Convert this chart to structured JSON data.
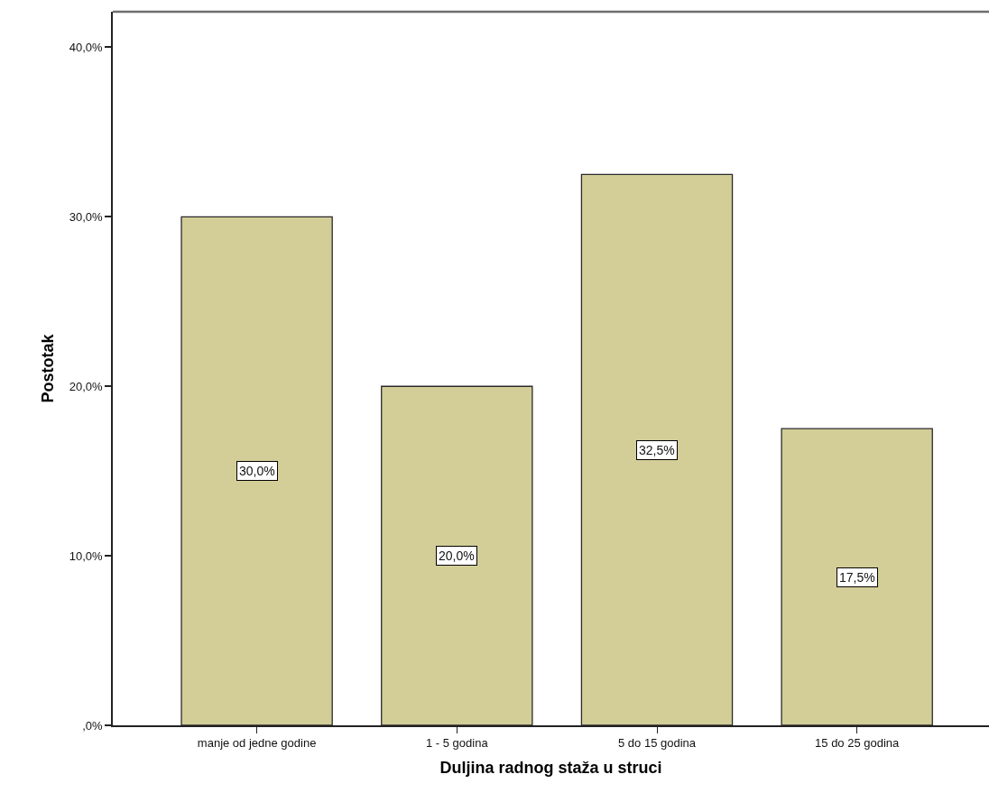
{
  "chart_data": {
    "type": "bar",
    "xlabel": "Duljina radnog staža u struci",
    "ylabel": "Postotak",
    "categories": [
      "manje od jedne godine",
      "1 - 5 godina",
      "5 do 15 godina",
      "15 do 25 godina"
    ],
    "values": [
      30.0,
      20.0,
      32.5,
      17.5
    ],
    "value_labels": [
      "30,0%",
      "20,0%",
      "32,5%",
      "17,5%"
    ],
    "color": "#d3ce98",
    "ylim": [
      0,
      42.1
    ],
    "yticks": [
      {
        "value": 0,
        "label": ",0%"
      },
      {
        "value": 10,
        "label": "10,0%"
      },
      {
        "value": 20,
        "label": "20,0%"
      },
      {
        "value": 30,
        "label": "30,0%"
      },
      {
        "value": 40,
        "label": "40,0%"
      }
    ],
    "legend": false
  }
}
